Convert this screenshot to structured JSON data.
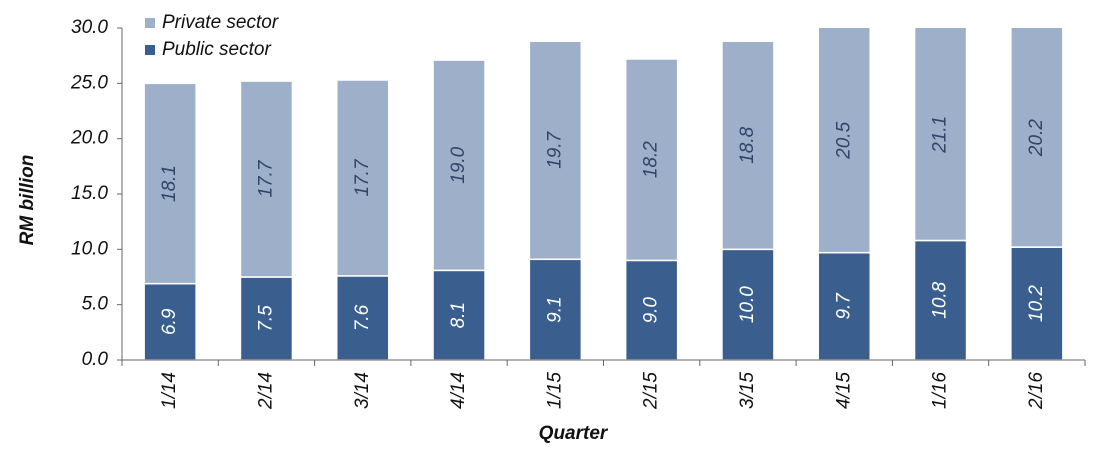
{
  "chart_data": {
    "type": "stacked_bar",
    "x_label": "Quarter",
    "y_label": "RM billion",
    "categories": [
      "1/14",
      "2/14",
      "3/14",
      "4/14",
      "1/15",
      "2/15",
      "3/15",
      "4/15",
      "1/16",
      "2/16"
    ],
    "series": [
      {
        "name": "Public sector",
        "color": "#3a5f8f",
        "label_color": "#ffffff",
        "values": [
          6.9,
          7.5,
          7.6,
          8.1,
          9.1,
          9.0,
          10.0,
          9.7,
          10.8,
          10.2
        ],
        "value_labels": [
          "6.9",
          "7.5",
          "7.6",
          "8.1",
          "9.1",
          "9.0",
          "10.0",
          "9.7",
          "10.8",
          "10.2"
        ]
      },
      {
        "name": "Private sector",
        "color": "#9eb0c9",
        "label_color": "#2e4468",
        "values": [
          18.1,
          17.7,
          17.7,
          19.0,
          19.7,
          18.2,
          18.8,
          20.5,
          21.1,
          20.2
        ],
        "value_labels": [
          "18.1",
          "17.7",
          "17.7",
          "19.0",
          "19.7",
          "18.2",
          "18.8",
          "20.5",
          "21.1",
          "20.2"
        ]
      }
    ],
    "ylim": [
      0,
      30
    ],
    "yticks": [
      {
        "value": 0,
        "label": "0.0"
      },
      {
        "value": 5,
        "label": "5.0"
      },
      {
        "value": 10,
        "label": "10.0"
      },
      {
        "value": 15,
        "label": "15.0"
      },
      {
        "value": 20,
        "label": "20.0"
      },
      {
        "value": 25,
        "label": "25.0"
      },
      {
        "value": 30,
        "label": "30.0"
      }
    ],
    "grid": false,
    "legend": "top-left"
  }
}
